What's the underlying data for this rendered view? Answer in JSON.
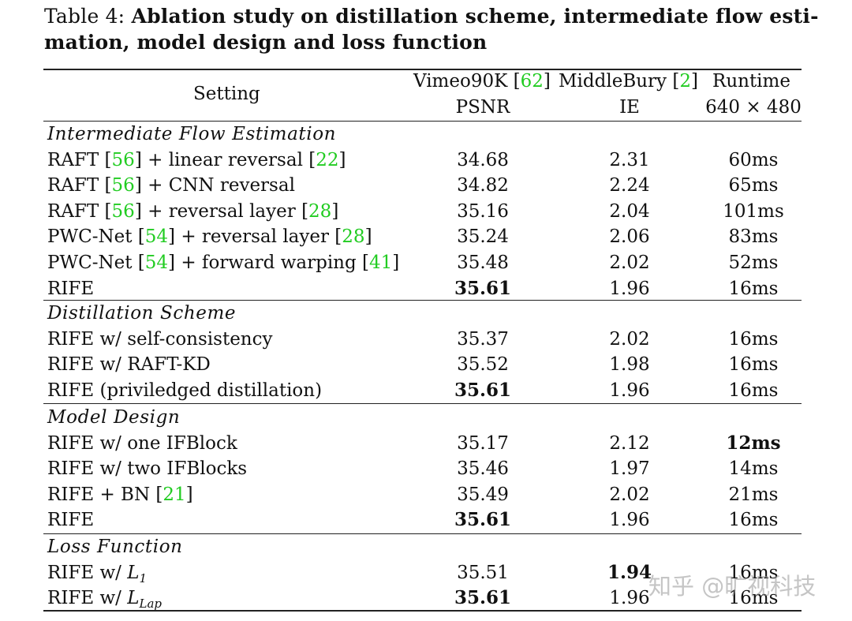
{
  "caption": {
    "label": "Table 4:",
    "title_line1": "Ablation study on distillation scheme, intermediate flow esti-",
    "title_line2": "mation, model design and loss function"
  },
  "header": {
    "setting": "Setting",
    "vimeo_name": "Vimeo90K",
    "vimeo_ref": "62",
    "middlebury_name": "MiddleBury",
    "middlebury_ref": "2",
    "runtime_name": "Runtime",
    "psnr": "PSNR",
    "ie": "IE",
    "resolution": "640 × 480"
  },
  "sections": [
    {
      "title": "Intermediate Flow Estimation",
      "rows": [
        {
          "setting": [
            "RAFT ",
            "[",
            "56",
            "]",
            " + linear reversal ",
            "[",
            "22",
            "]"
          ],
          "psnr": "34.68",
          "ie": "2.31",
          "runtime": "60ms"
        },
        {
          "setting": [
            "RAFT ",
            "[",
            "56",
            "]",
            " + CNN reversal"
          ],
          "psnr": "34.82",
          "ie": "2.24",
          "runtime": "65ms"
        },
        {
          "setting": [
            "RAFT ",
            "[",
            "56",
            "]",
            " + reversal layer ",
            "[",
            "28",
            "]"
          ],
          "psnr": "35.16",
          "ie": "2.04",
          "runtime": "101ms"
        },
        {
          "setting": [
            "PWC-Net ",
            "[",
            "54",
            "]",
            " + reversal layer ",
            "[",
            "28",
            "]"
          ],
          "psnr": "35.24",
          "ie": "2.06",
          "runtime": "83ms"
        },
        {
          "setting": [
            "PWC-Net ",
            "[",
            "54",
            "]",
            " + forward warping ",
            "[",
            "41",
            "]"
          ],
          "psnr": "35.48",
          "ie": "2.02",
          "runtime": "52ms"
        },
        {
          "setting": [
            "RIFE"
          ],
          "psnr": "35.61",
          "ie": "1.96",
          "runtime": "16ms"
        }
      ]
    },
    {
      "title": "Distillation Scheme",
      "rows": [
        {
          "setting": [
            "RIFE w/ self-consistency"
          ],
          "psnr": "35.37",
          "ie": "2.02",
          "runtime": "16ms"
        },
        {
          "setting": [
            "RIFE w/ RAFT-KD"
          ],
          "psnr": "35.52",
          "ie": "1.98",
          "runtime": "16ms"
        },
        {
          "setting": [
            "RIFE (priviledged distillation)"
          ],
          "psnr": "35.61",
          "ie": "1.96",
          "runtime": "16ms"
        }
      ]
    },
    {
      "title": "Model Design",
      "rows": [
        {
          "setting": [
            "RIFE w/ one IFBlock"
          ],
          "psnr": "35.17",
          "ie": "2.12",
          "runtime": "12ms"
        },
        {
          "setting": [
            "RIFE w/ two IFBlocks"
          ],
          "psnr": "35.46",
          "ie": "1.97",
          "runtime": "14ms"
        },
        {
          "setting": [
            "RIFE + BN ",
            "[",
            "21",
            "]"
          ],
          "psnr": "35.49",
          "ie": "2.02",
          "runtime": "21ms"
        },
        {
          "setting": [
            "RIFE"
          ],
          "psnr": "35.61",
          "ie": "1.96",
          "runtime": "16ms"
        }
      ]
    },
    {
      "title": "Loss Function",
      "rows": [
        {
          "setting": [
            "RIFE w/ ",
            "L",
            "1"
          ],
          "psnr": "35.51",
          "ie": "1.94",
          "runtime": "16ms"
        },
        {
          "setting": [
            "RIFE w/ ",
            "L",
            "Lap"
          ],
          "psnr": "35.61",
          "ie": "1.96",
          "runtime": "16ms"
        }
      ]
    }
  ],
  "watermark": "知乎 @旷视科技"
}
